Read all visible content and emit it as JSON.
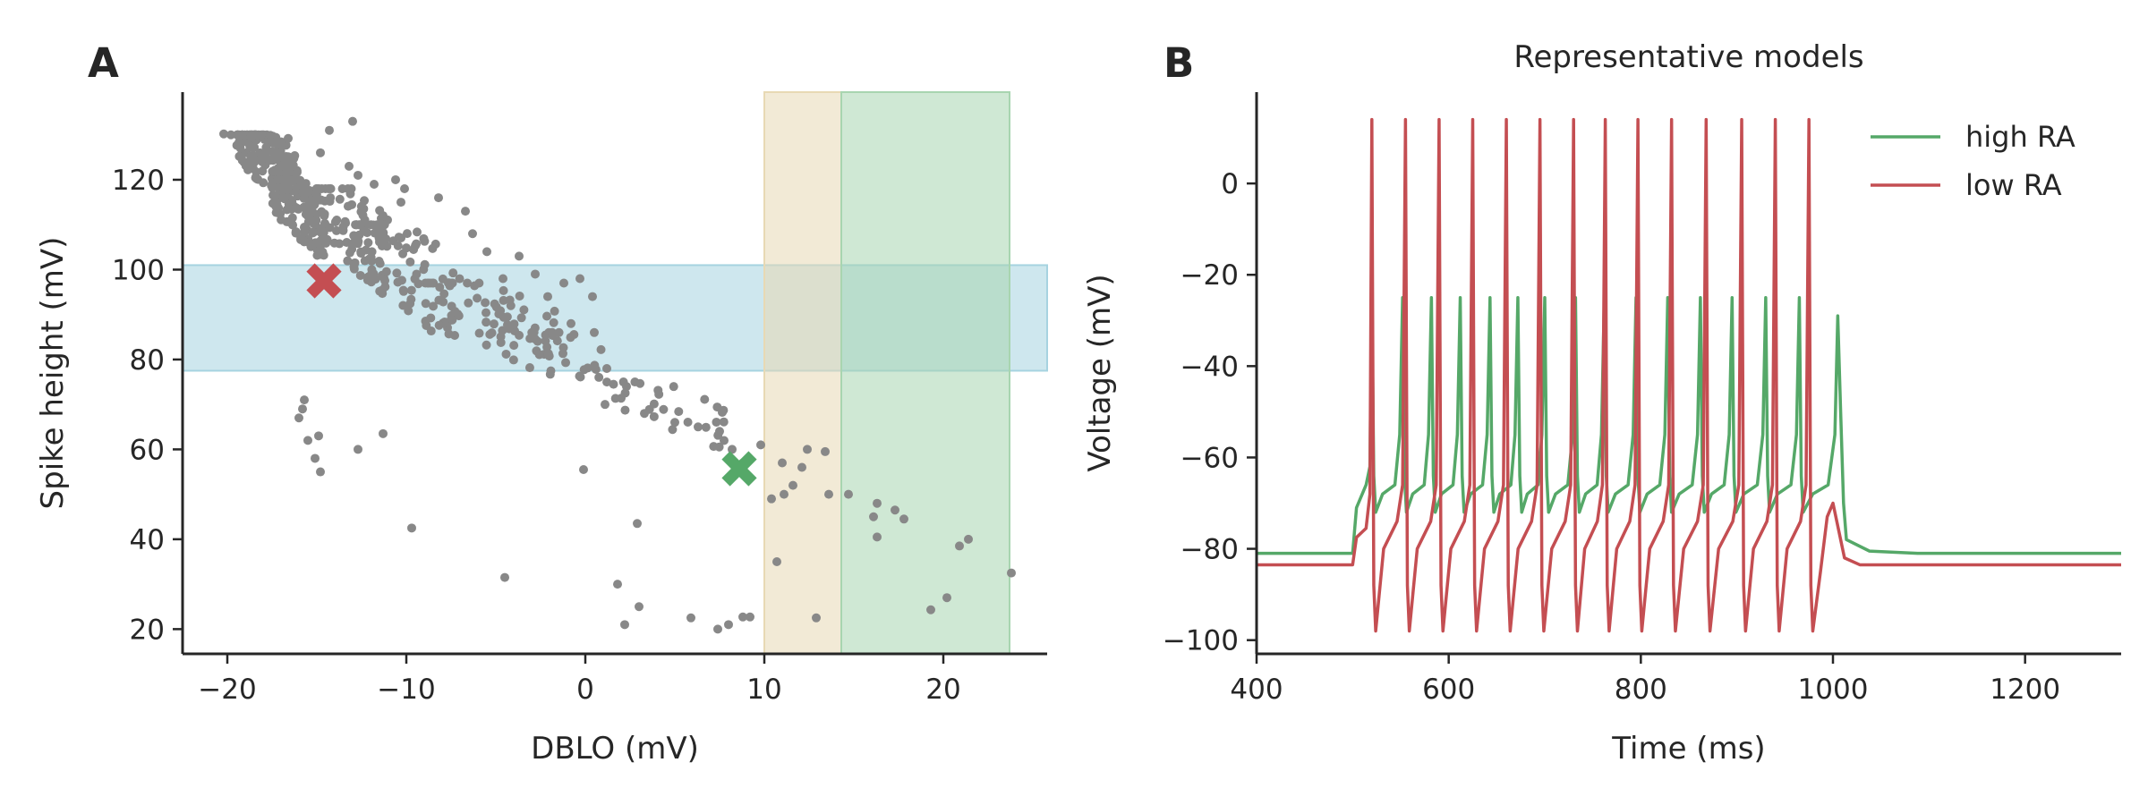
{
  "panels": {
    "A": {
      "letter": "A"
    },
    "B": {
      "letter": "B"
    }
  },
  "chart_data": [
    {
      "panel": "A",
      "type": "scatter",
      "title": "",
      "xlabel": "DBLO (mV)",
      "ylabel": "Spike height (mV)",
      "xlim": [
        -22.5,
        25.8
      ],
      "ylim": [
        14.5,
        139.5
      ],
      "xticks": [
        -20,
        -10,
        0,
        10,
        20
      ],
      "yticks": [
        20,
        40,
        60,
        80,
        100,
        120
      ],
      "xtick_labels": [
        "−20",
        "−10",
        "0",
        "10",
        "20"
      ],
      "ytick_labels": [
        "20",
        "40",
        "60",
        "80",
        "100",
        "120"
      ],
      "point_color": "#888888",
      "bands": [
        {
          "orientation": "horizontal",
          "y": [
            77.5,
            101
          ],
          "color": "#a6d3e0"
        },
        {
          "orientation": "vertical",
          "x": [
            10,
            14.3
          ],
          "color": "#e8d9b4"
        },
        {
          "orientation": "vertical",
          "x": [
            14.3,
            23.7
          ],
          "color": "#a8d5b0"
        }
      ],
      "markers": [
        {
          "model": "low RA",
          "x": -14.6,
          "y": 97.5,
          "color": "#c44e52",
          "symbol": "X"
        },
        {
          "model": "high RA",
          "x": 8.6,
          "y": 55.7,
          "color": "#55a868",
          "symbol": "X"
        }
      ],
      "points_explicit": [
        [
          -20.2,
          130.2
        ],
        [
          -19.8,
          130
        ],
        [
          -19.3,
          129.8
        ],
        [
          -18.7,
          129.5
        ],
        [
          -17.6,
          129.9
        ],
        [
          -16.6,
          129.2
        ],
        [
          -13,
          133
        ],
        [
          -14.3,
          131
        ],
        [
          -14.8,
          126
        ],
        [
          -13.2,
          123
        ],
        [
          -12.7,
          121
        ],
        [
          -11.8,
          119
        ],
        [
          -10.6,
          120
        ],
        [
          -10.1,
          118
        ],
        [
          -10.3,
          115
        ],
        [
          -11.3,
          112
        ],
        [
          -8.2,
          116
        ],
        [
          -6.7,
          113
        ],
        [
          -6.3,
          108
        ],
        [
          -5.5,
          104
        ],
        [
          -3.7,
          103
        ],
        [
          -4.6,
          98
        ],
        [
          -2.8,
          99
        ],
        [
          -1.2,
          97
        ],
        [
          -2.1,
          94
        ],
        [
          -0.3,
          98
        ],
        [
          0.4,
          94
        ],
        [
          0.5,
          86
        ],
        [
          -0.8,
          88
        ],
        [
          1.2,
          78
        ],
        [
          2.3,
          74
        ],
        [
          1.1,
          70
        ],
        [
          3.3,
          68
        ],
        [
          5,
          66
        ],
        [
          6.3,
          65
        ],
        [
          7.5,
          64
        ],
        [
          8.2,
          60
        ],
        [
          8.8,
          57
        ],
        [
          9.8,
          61
        ],
        [
          11,
          57
        ],
        [
          12.4,
          60
        ],
        [
          13.4,
          59.5
        ],
        [
          12.1,
          56
        ],
        [
          11.6,
          52
        ],
        [
          11.1,
          50
        ],
        [
          10.4,
          49
        ],
        [
          13.6,
          50
        ],
        [
          14.7,
          50
        ],
        [
          16.3,
          48
        ],
        [
          17.3,
          46.5
        ],
        [
          16.1,
          45
        ],
        [
          17.8,
          44.5
        ],
        [
          16.3,
          40.5
        ],
        [
          21.4,
          40
        ],
        [
          20.9,
          38.5
        ],
        [
          23.8,
          32.5
        ],
        [
          19.3,
          24.3
        ],
        [
          20.2,
          27
        ],
        [
          8.8,
          22.7
        ],
        [
          9.2,
          22.7
        ],
        [
          7.4,
          20
        ],
        [
          8,
          21
        ],
        [
          5.9,
          22.5
        ],
        [
          2.2,
          21
        ],
        [
          3,
          25
        ],
        [
          1.8,
          30
        ],
        [
          2.9,
          43.5
        ],
        [
          -0.1,
          55.5
        ],
        [
          10.7,
          35
        ],
        [
          12.9,
          22.5
        ],
        [
          -4.5,
          31.5
        ],
        [
          -9.7,
          42.5
        ],
        [
          -15.7,
          71
        ],
        [
          -15.8,
          69
        ],
        [
          -16,
          67
        ],
        [
          -14.9,
          63
        ],
        [
          -12.7,
          60
        ],
        [
          -11.3,
          63.5
        ],
        [
          -15.1,
          58
        ],
        [
          -14.8,
          55
        ],
        [
          -15.5,
          62
        ]
      ],
      "points_cloud": [
        {
          "x": [
            -19.5,
            -16.0
          ],
          "y": [
            112,
            130
          ],
          "n": 160
        },
        {
          "x": [
            -17.5,
            -14.5
          ],
          "y": [
            100,
            120
          ],
          "n": 110
        },
        {
          "x": [
            -15.5,
            -11.0
          ],
          "y": [
            92,
            118
          ],
          "n": 90
        },
        {
          "x": [
            -13.0,
            -7.0
          ],
          "y": [
            80,
            110
          ],
          "n": 90
        },
        {
          "x": [
            -9.0,
            -1.5
          ],
          "y": [
            73,
            97
          ],
          "n": 70
        },
        {
          "x": [
            -3.0,
            1.0
          ],
          "y": [
            72,
            86
          ],
          "n": 24
        },
        {
          "x": [
            1.0,
            8.0
          ],
          "y": [
            58,
            75
          ],
          "n": 30
        }
      ]
    },
    {
      "panel": "B",
      "type": "line",
      "title": "Representative models",
      "xlabel": "Time (ms)",
      "ylabel": "Voltage (mV)",
      "xlim": [
        400,
        1300
      ],
      "ylim": [
        -103,
        20
      ],
      "xticks": [
        400,
        600,
        800,
        1000,
        1200
      ],
      "yticks": [
        -100,
        -80,
        -60,
        -40,
        -20,
        0
      ],
      "xtick_labels": [
        "400",
        "600",
        "800",
        "1000",
        "1200"
      ],
      "ytick_labels": [
        "−100",
        "−80",
        "−60",
        "−40",
        "−20",
        "0"
      ],
      "legend_position": "top-right",
      "series": [
        {
          "name": "high RA",
          "color": "#55a868",
          "rest": -81,
          "stim_on": 500,
          "stim_off": 1008,
          "first_spike": 520,
          "spike_peak": -25,
          "trough": -72,
          "spike_times": [
            520,
            552,
            582,
            612,
            643,
            672,
            700,
            732,
            762,
            795,
            828,
            862,
            895,
            930,
            965,
            1005
          ],
          "last_peak": -29
        },
        {
          "name": "low RA",
          "color": "#c44e52",
          "rest": -83.5,
          "stim_on": 500,
          "stim_off": 1008,
          "first_spike": 520,
          "spike_peak": 14,
          "trough": -98,
          "spike_times": [
            520,
            555,
            590,
            625,
            660,
            695,
            730,
            763,
            797,
            832,
            868,
            905,
            940,
            975
          ],
          "last_bump": {
            "t": 1000,
            "v": -70
          }
        }
      ]
    }
  ]
}
